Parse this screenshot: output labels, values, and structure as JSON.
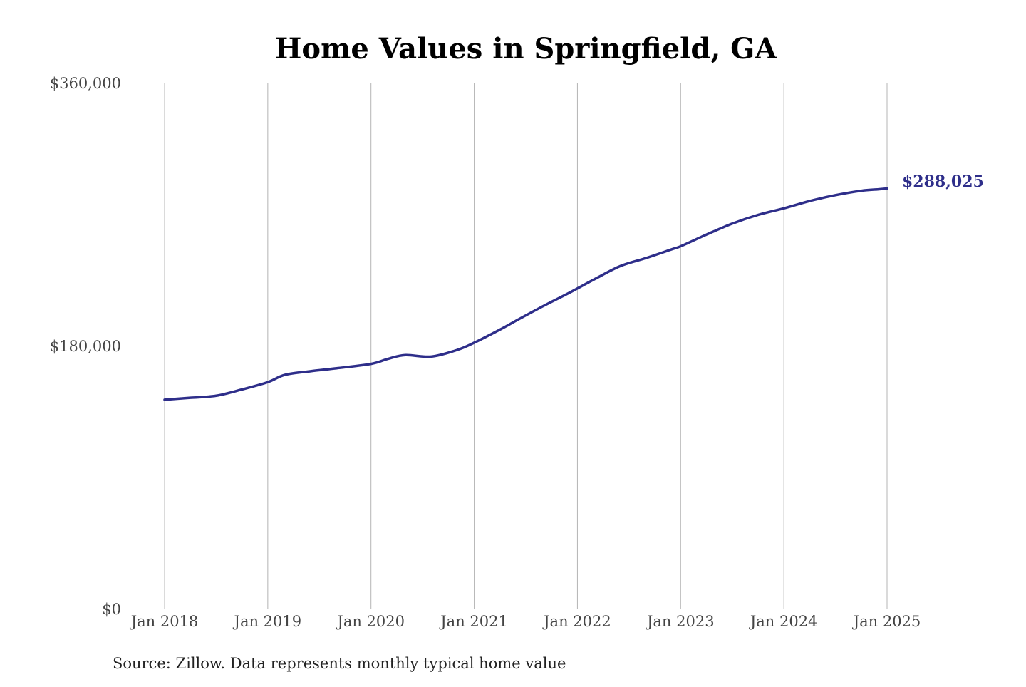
{
  "chart_data": {
    "type": "line",
    "title": "Home Values in Springfield, GA",
    "xlabel": "",
    "ylabel": "",
    "x_ticks": [
      "Jan 2018",
      "Jan 2019",
      "Jan 2020",
      "Jan 2021",
      "Jan 2022",
      "Jan 2023",
      "Jan 2024",
      "Jan 2025"
    ],
    "y_ticks": [
      "$0",
      "$180,000",
      "$360,000"
    ],
    "ylim": [
      0,
      360000
    ],
    "xlim": [
      "2018-01",
      "2025-01"
    ],
    "grid": "vertical",
    "line_color": "#2e2e8a",
    "end_label": "$288,025",
    "source": "Source: Zillow. Data represents monthly typical home value",
    "series": [
      {
        "points": [
          [
            "2018-01",
            143500
          ],
          [
            "2018-04",
            144800
          ],
          [
            "2018-07",
            146200
          ],
          [
            "2018-10",
            150500
          ],
          [
            "2019-01",
            155500
          ],
          [
            "2019-03",
            160500
          ],
          [
            "2019-06",
            163000
          ],
          [
            "2019-09",
            165000
          ],
          [
            "2020-01",
            168000
          ],
          [
            "2020-03",
            171500
          ],
          [
            "2020-05",
            174000
          ],
          [
            "2020-08",
            173000
          ],
          [
            "2020-11",
            177500
          ],
          [
            "2021-01",
            182500
          ],
          [
            "2021-04",
            191500
          ],
          [
            "2021-06",
            198000
          ],
          [
            "2021-09",
            207500
          ],
          [
            "2021-12",
            216500
          ],
          [
            "2022-03",
            226000
          ],
          [
            "2022-06",
            235000
          ],
          [
            "2022-09",
            240500
          ],
          [
            "2022-12",
            246500
          ],
          [
            "2023-01",
            248500
          ],
          [
            "2023-04",
            256500
          ],
          [
            "2023-07",
            264000
          ],
          [
            "2023-10",
            270000
          ],
          [
            "2024-01",
            274500
          ],
          [
            "2024-04",
            279500
          ],
          [
            "2024-07",
            283500
          ],
          [
            "2024-10",
            286500
          ],
          [
            "2024-12",
            287500
          ],
          [
            "2025-01",
            288025
          ]
        ]
      }
    ]
  }
}
